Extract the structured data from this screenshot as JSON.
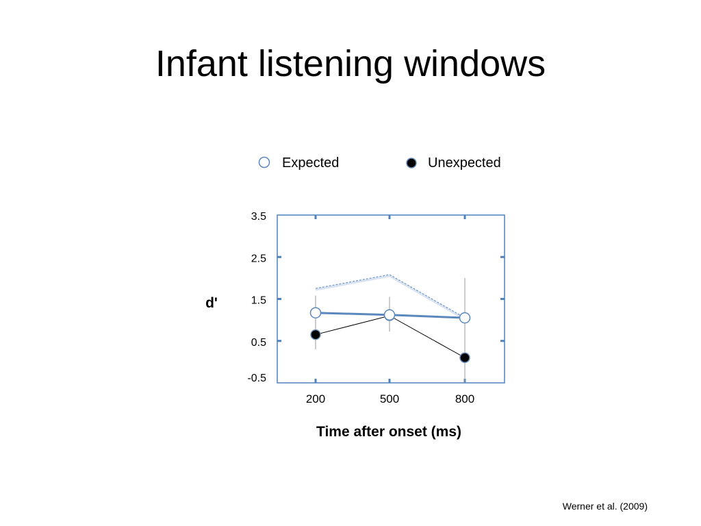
{
  "slide": {
    "title": "Infant listening windows",
    "citation": "Werner et al. (2009)"
  },
  "colors": {
    "expected": "#5b87bd",
    "unexpected": "#000000",
    "errorbar": "#9a9a9a",
    "frame": "#4f81bd",
    "dashed_line": "#6e96c8"
  },
  "chart_data": {
    "type": "line",
    "xlabel": "Time after onset (ms)",
    "ylabel": "d'",
    "ylim": [
      -0.5,
      3.5
    ],
    "yticks": [
      "3.5",
      "2.5",
      "1.5",
      "0.5",
      "-0.5"
    ],
    "ytick_values": [
      3.5,
      2.5,
      1.5,
      0.5,
      -0.5
    ],
    "categories": [
      "200",
      "500",
      "800"
    ],
    "legend_placement": "top",
    "series": [
      {
        "name": "Expected",
        "marker": "open-circle",
        "values": [
          1.17,
          1.12,
          1.05
        ],
        "error_low": [
          0.75,
          0.78,
          0.05
        ],
        "error_high": [
          1.58,
          1.55,
          2.0
        ]
      },
      {
        "name": "Unexpected",
        "marker": "filled-circle",
        "values": [
          0.65,
          1.1,
          0.1
        ],
        "error_low": [
          0.3,
          0.72,
          -0.5
        ],
        "error_high": [
          1.0,
          1.5,
          0.5
        ]
      }
    ],
    "overlay_dashed": {
      "values": [
        1.75,
        2.08,
        1.05
      ]
    }
  }
}
